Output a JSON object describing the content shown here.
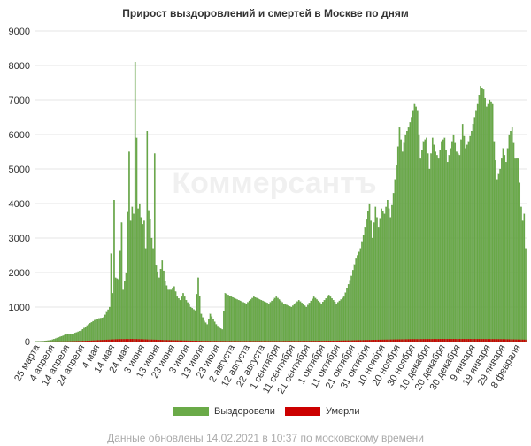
{
  "footer": {
    "note": "Данные обновлены 14.02.2021 в 10:37 по московскому времени"
  },
  "colors": {
    "recovered": "#6aaa48",
    "recovered_stroke": "#4a8a30",
    "died": "#cc0000",
    "grid": "#e6e6e6",
    "axis_text": "#333333"
  },
  "watermark": "Коммерсантъ",
  "chart_data": {
    "type": "bar",
    "title": "Прирост выздоровлений и смертей в Москве по дням",
    "ylim": [
      0,
      9000
    ],
    "yticks": [
      0,
      1000,
      2000,
      3000,
      4000,
      5000,
      6000,
      7000,
      8000,
      9000
    ],
    "x_tick_labels": [
      "25 марта",
      "4 апреля",
      "14 апреля",
      "24 апреля",
      "4 мая",
      "14 мая",
      "24 мая",
      "3 июня",
      "13 июня",
      "23 июня",
      "3 июля",
      "13 июля",
      "23 июля",
      "2 августа",
      "12 августа",
      "22 августа",
      "1 сентября",
      "11 сентября",
      "21 сентября",
      "1 октября",
      "11 октября",
      "21 октября",
      "31 октября",
      "10 ноября",
      "20 ноября",
      "30 ноября",
      "10 декабря",
      "20 декабря",
      "30 декабря",
      "9 января",
      "19 января",
      "29 января",
      "8 февраля"
    ],
    "days": 327,
    "series": [
      {
        "name": "Выздоровели",
        "anchors": [
          [
            0,
            5
          ],
          [
            5,
            15
          ],
          [
            10,
            40
          ],
          [
            15,
            120
          ],
          [
            20,
            200
          ],
          [
            25,
            230
          ],
          [
            30,
            320
          ],
          [
            35,
            500
          ],
          [
            40,
            650
          ],
          [
            45,
            700
          ],
          [
            49,
            1000
          ],
          [
            50,
            2550
          ],
          [
            51,
            1400
          ],
          [
            52,
            4100
          ],
          [
            53,
            1850
          ],
          [
            55,
            1800
          ],
          [
            57,
            3450
          ],
          [
            58,
            1500
          ],
          [
            60,
            2000
          ],
          [
            62,
            5500
          ],
          [
            63,
            3500
          ],
          [
            64,
            3900
          ],
          [
            65,
            3700
          ],
          [
            66,
            8100
          ],
          [
            67,
            5900
          ],
          [
            68,
            3850
          ],
          [
            69,
            4000
          ],
          [
            70,
            3600
          ],
          [
            71,
            3400
          ],
          [
            72,
            3500
          ],
          [
            73,
            2700
          ],
          [
            74,
            6100
          ],
          [
            75,
            3800
          ],
          [
            76,
            3550
          ],
          [
            77,
            3000
          ],
          [
            78,
            2700
          ],
          [
            79,
            5450
          ],
          [
            80,
            2200
          ],
          [
            82,
            1850
          ],
          [
            84,
            2350
          ],
          [
            86,
            1750
          ],
          [
            88,
            1500
          ],
          [
            90,
            1500
          ],
          [
            92,
            1600
          ],
          [
            94,
            1300
          ],
          [
            96,
            1200
          ],
          [
            98,
            1400
          ],
          [
            100,
            1200
          ],
          [
            103,
            1000
          ],
          [
            106,
            900
          ],
          [
            108,
            1850
          ],
          [
            110,
            800
          ],
          [
            112,
            600
          ],
          [
            114,
            500
          ],
          [
            116,
            800
          ],
          [
            118,
            650
          ],
          [
            120,
            500
          ],
          [
            122,
            400
          ],
          [
            124,
            350
          ],
          [
            126,
            1400
          ],
          [
            130,
            1300
          ],
          [
            135,
            1200
          ],
          [
            140,
            1100
          ],
          [
            145,
            1300
          ],
          [
            150,
            1200
          ],
          [
            155,
            1100
          ],
          [
            160,
            1300
          ],
          [
            165,
            1100
          ],
          [
            170,
            1000
          ],
          [
            175,
            1200
          ],
          [
            180,
            1000
          ],
          [
            185,
            1300
          ],
          [
            190,
            1100
          ],
          [
            195,
            1350
          ],
          [
            200,
            1100
          ],
          [
            205,
            1300
          ],
          [
            210,
            1900
          ],
          [
            213,
            2400
          ],
          [
            216,
            2700
          ],
          [
            219,
            3300
          ],
          [
            222,
            4000
          ],
          [
            224,
            3000
          ],
          [
            226,
            3900
          ],
          [
            228,
            3300
          ],
          [
            230,
            3850
          ],
          [
            232,
            3700
          ],
          [
            234,
            4100
          ],
          [
            236,
            3600
          ],
          [
            238,
            4300
          ],
          [
            240,
            5100
          ],
          [
            242,
            6200
          ],
          [
            244,
            5500
          ],
          [
            246,
            6000
          ],
          [
            248,
            6200
          ],
          [
            250,
            6500
          ],
          [
            252,
            6900
          ],
          [
            254,
            6700
          ],
          [
            256,
            5300
          ],
          [
            258,
            5800
          ],
          [
            260,
            5900
          ],
          [
            262,
            5000
          ],
          [
            264,
            5900
          ],
          [
            266,
            5500
          ],
          [
            268,
            5300
          ],
          [
            270,
            5800
          ],
          [
            272,
            5900
          ],
          [
            274,
            5200
          ],
          [
            276,
            5600
          ],
          [
            278,
            6000
          ],
          [
            280,
            5500
          ],
          [
            282,
            5400
          ],
          [
            284,
            6300
          ],
          [
            286,
            5600
          ],
          [
            288,
            5800
          ],
          [
            290,
            6100
          ],
          [
            292,
            6500
          ],
          [
            294,
            6900
          ],
          [
            296,
            7400
          ],
          [
            298,
            7300
          ],
          [
            300,
            6800
          ],
          [
            302,
            7000
          ],
          [
            304,
            6900
          ],
          [
            305,
            5800
          ],
          [
            307,
            4700
          ],
          [
            309,
            5000
          ],
          [
            311,
            5600
          ],
          [
            313,
            5200
          ],
          [
            315,
            6000
          ],
          [
            317,
            6200
          ],
          [
            319,
            5300
          ],
          [
            321,
            5300
          ],
          [
            322,
            4600
          ],
          [
            323,
            3900
          ],
          [
            324,
            3500
          ],
          [
            325,
            3700
          ],
          [
            326,
            2700
          ],
          [
            327,
            2100
          ]
        ]
      },
      {
        "name": "Умерли",
        "anchors": [
          [
            0,
            0
          ],
          [
            20,
            5
          ],
          [
            35,
            25
          ],
          [
            45,
            50
          ],
          [
            55,
            70
          ],
          [
            65,
            75
          ],
          [
            75,
            60
          ],
          [
            90,
            40
          ],
          [
            110,
            20
          ],
          [
            130,
            15
          ],
          [
            160,
            15
          ],
          [
            190,
            20
          ],
          [
            210,
            35
          ],
          [
            230,
            55
          ],
          [
            250,
            70
          ],
          [
            270,
            75
          ],
          [
            290,
            75
          ],
          [
            310,
            70
          ],
          [
            327,
            55
          ]
        ]
      }
    ]
  }
}
